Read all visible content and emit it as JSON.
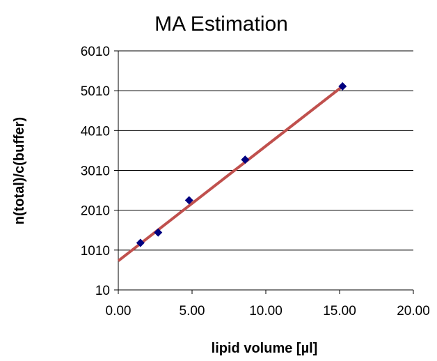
{
  "chart_data": {
    "type": "scatter",
    "title": "MA Estimation",
    "xlabel": "lipid volume [µl]",
    "ylabel": "n(total)/c(buffer)",
    "xlim": [
      0,
      20
    ],
    "ylim": [
      10,
      6010
    ],
    "x_ticks": [
      "0.00",
      "5.00",
      "10.00",
      "15.00",
      "20.00"
    ],
    "y_ticks": [
      "10",
      "1010",
      "2010",
      "3010",
      "4010",
      "5010",
      "6010"
    ],
    "grid": "horizontal",
    "legend": "none",
    "series": [
      {
        "marker": "diamond",
        "color": "#000080",
        "points": [
          {
            "x": 1.5,
            "y": 1190
          },
          {
            "x": 2.7,
            "y": 1450
          },
          {
            "x": 4.8,
            "y": 2260
          },
          {
            "x": 8.6,
            "y": 3280
          },
          {
            "x": 15.2,
            "y": 5120
          }
        ]
      }
    ],
    "trendline": {
      "type": "linear",
      "color": "#c0504d",
      "from": {
        "x": 0,
        "y": 740
      },
      "to": {
        "x": 15.2,
        "y": 5120
      }
    }
  }
}
